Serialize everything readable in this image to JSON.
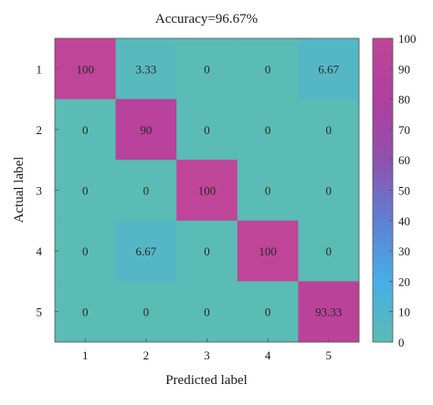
{
  "chart_data": {
    "type": "heatmap",
    "title": "Accuracy=96.67%",
    "xlabel": "Predicted label",
    "ylabel": "Actual label",
    "x_categories": [
      "1",
      "2",
      "3",
      "4",
      "5"
    ],
    "y_categories": [
      "1",
      "2",
      "3",
      "4",
      "5"
    ],
    "cell_labels": [
      [
        "100",
        "3.33",
        "0",
        "0",
        "6.67"
      ],
      [
        "0",
        "90",
        "0",
        "0",
        "0"
      ],
      [
        "0",
        "0",
        "100",
        "0",
        "0"
      ],
      [
        "0",
        "6.67",
        "0",
        "100",
        "0"
      ],
      [
        "0",
        "0",
        "0",
        "0",
        "93.33"
      ]
    ],
    "values": [
      [
        100,
        3.33,
        0,
        0,
        6.67
      ],
      [
        0,
        90,
        0,
        0,
        0
      ],
      [
        0,
        0,
        100,
        0,
        0
      ],
      [
        0,
        6.67,
        0,
        100,
        0
      ],
      [
        0,
        0,
        0,
        0,
        93.33
      ]
    ],
    "colorbar": {
      "range": [
        0,
        100
      ],
      "ticks": [
        "0",
        "10",
        "20",
        "30",
        "40",
        "50",
        "60",
        "70",
        "80",
        "90",
        "100"
      ],
      "stops": [
        "#5BBBB5",
        "#48AEE6",
        "#5F7FD4",
        "#8F51AE",
        "#B03F9F",
        "#BF4598"
      ]
    },
    "grid": false,
    "legend": "right"
  }
}
